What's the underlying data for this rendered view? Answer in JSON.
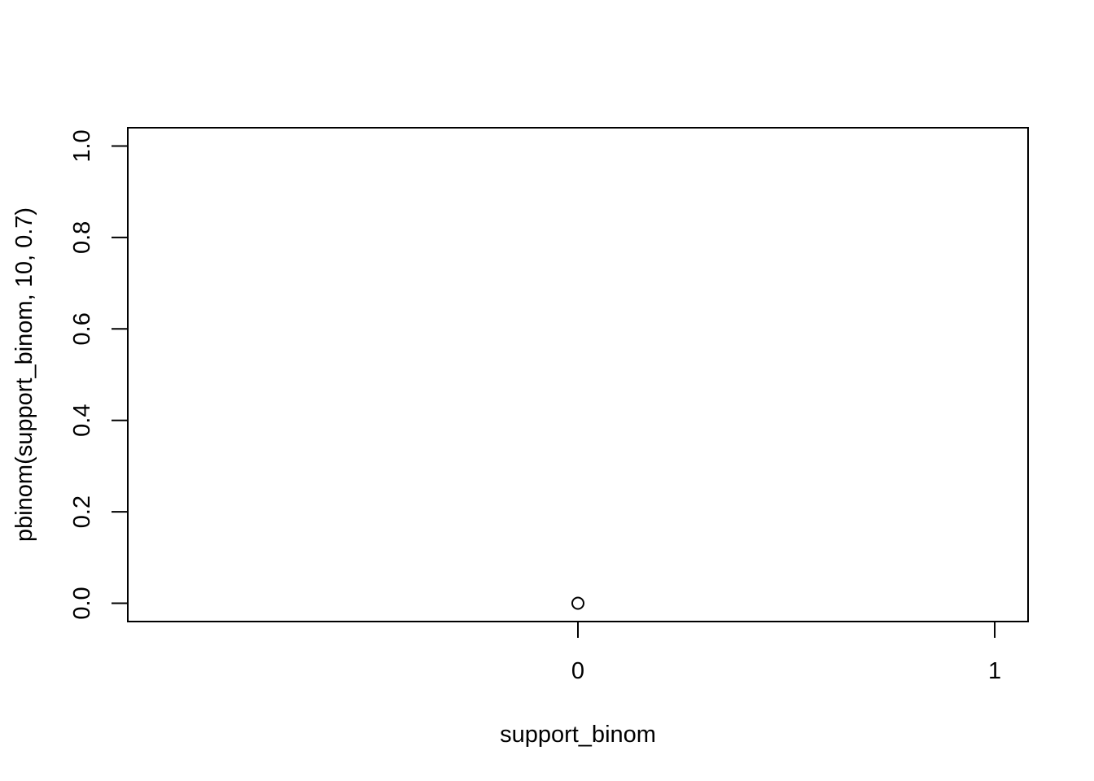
{
  "chart_data": {
    "type": "scatter",
    "title": "",
    "xlabel": "support_binom",
    "ylabel": "pbinom(support_binom, 10, 0.7)",
    "xlim": [
      -1.08,
      1.08
    ],
    "ylim": [
      -0.04,
      1.04
    ],
    "x_ticks": [
      0,
      1
    ],
    "x_tick_labels": [
      "0",
      "1"
    ],
    "y_ticks": [
      0.0,
      0.2,
      0.4,
      0.6,
      0.8,
      1.0
    ],
    "y_tick_labels": [
      "0.0",
      "0.2",
      "0.4",
      "0.6",
      "0.8",
      "1.0"
    ],
    "grid": false,
    "marker": "open-circle",
    "series": [
      {
        "x": [
          0
        ],
        "y": [
          5.9049e-06
        ]
      }
    ],
    "colors": {
      "ink": "#000000",
      "background": "#ffffff"
    }
  }
}
